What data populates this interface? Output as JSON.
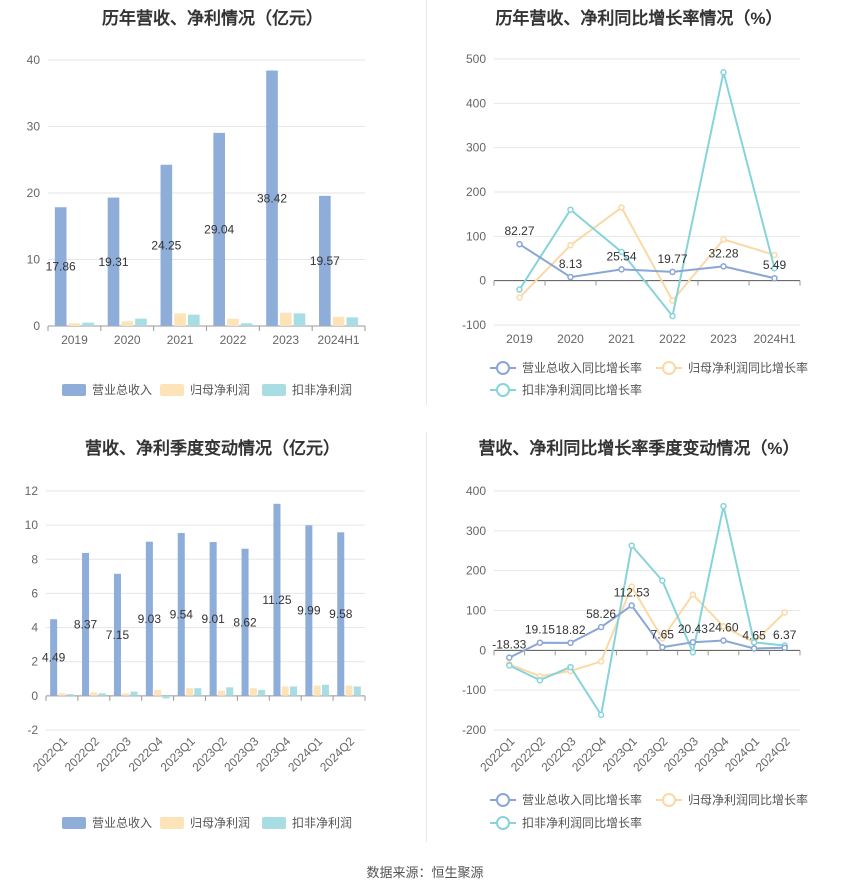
{
  "source_label": "数据来源：恒生聚源",
  "colors": {
    "revenue": "#8eadd9",
    "parent_net": "#fde3b8",
    "deducted_net": "#a8dde3",
    "revenue_line": "#8aa6d6",
    "parent_line": "#fbd9a6",
    "deducted_line": "#86d4da"
  },
  "chart_data": [
    {
      "id": "annual_amount",
      "type": "bar",
      "title": "历年营收、净利情况（亿元）",
      "categories": [
        "2019",
        "2020",
        "2021",
        "2022",
        "2023",
        "2024H1"
      ],
      "ylim": [
        0,
        40
      ],
      "yticks": [
        0,
        10,
        20,
        30,
        40
      ],
      "grid": true,
      "legend_position": "bottom",
      "series": [
        {
          "name": "营业总收入",
          "values": [
            17.86,
            19.31,
            24.25,
            29.04,
            38.42,
            19.57
          ],
          "labels": [
            "17.86",
            "19.31",
            "24.25",
            "29.04",
            "38.42",
            "19.57"
          ]
        },
        {
          "name": "归母净利润",
          "values": [
            0.4,
            0.7,
            1.9,
            1.1,
            2.0,
            1.4
          ]
        },
        {
          "name": "扣非净利润",
          "values": [
            0.5,
            1.1,
            1.7,
            0.4,
            1.9,
            1.3
          ]
        }
      ]
    },
    {
      "id": "annual_growth",
      "type": "line",
      "title": "历年营收、净利同比增长率情况（%）",
      "categories": [
        "2019",
        "2020",
        "2021",
        "2022",
        "2023",
        "2024H1"
      ],
      "ylim": [
        -100,
        500
      ],
      "yticks": [
        -100,
        0,
        100,
        200,
        300,
        400,
        500
      ],
      "grid": true,
      "legend_position": "bottom",
      "series": [
        {
          "name": "营业总收入同比增长率",
          "values": [
            82.27,
            8.13,
            25.54,
            19.77,
            32.28,
            5.49
          ],
          "labels": [
            "82.27",
            "8.13",
            "25.54",
            "19.77",
            "32.28",
            "5.49"
          ]
        },
        {
          "name": "归母净利润同比增长率",
          "values": [
            -38,
            80,
            165,
            -45,
            93,
            58
          ]
        },
        {
          "name": "扣非净利润同比增长率",
          "values": [
            -20,
            160,
            65,
            -80,
            470,
            28
          ]
        }
      ]
    },
    {
      "id": "quarterly_amount",
      "type": "bar",
      "title": "营收、净利季度变动情况（亿元）",
      "categories": [
        "2022Q1",
        "2022Q2",
        "2022Q3",
        "2022Q4",
        "2023Q1",
        "2023Q2",
        "2023Q3",
        "2023Q4",
        "2024Q1",
        "2024Q2"
      ],
      "ylim": [
        -2,
        12
      ],
      "yticks": [
        -2,
        0,
        2,
        4,
        6,
        8,
        10,
        12
      ],
      "grid": true,
      "legend_position": "bottom",
      "series": [
        {
          "name": "营业总收入",
          "values": [
            4.49,
            8.37,
            7.15,
            9.03,
            9.54,
            9.01,
            8.62,
            11.25,
            9.99,
            9.58
          ],
          "labels": [
            "4.49",
            "8.37",
            "7.15",
            "9.03",
            "9.54",
            "9.01",
            "8.62",
            "11.25",
            "9.99",
            "9.58"
          ]
        },
        {
          "name": "归母净利润",
          "values": [
            0.15,
            0.2,
            0.15,
            0.35,
            0.45,
            0.3,
            0.45,
            0.55,
            0.6,
            0.6
          ]
        },
        {
          "name": "扣非净利润",
          "values": [
            0.1,
            0.15,
            0.25,
            -0.15,
            0.45,
            0.5,
            0.35,
            0.55,
            0.65,
            0.55
          ]
        }
      ]
    },
    {
      "id": "quarterly_growth",
      "type": "line",
      "title": "营收、净利同比增长率季度变动情况（%）",
      "categories": [
        "2022Q1",
        "2022Q2",
        "2022Q3",
        "2022Q4",
        "2023Q1",
        "2023Q2",
        "2023Q3",
        "2023Q4",
        "2024Q1",
        "2024Q2"
      ],
      "ylim": [
        -200,
        400
      ],
      "yticks": [
        -200,
        -100,
        0,
        100,
        200,
        300,
        400
      ],
      "grid": true,
      "legend_position": "bottom",
      "series": [
        {
          "name": "营业总收入同比增长率",
          "values": [
            -18.33,
            19.15,
            18.82,
            58.26,
            112.53,
            7.65,
            20.43,
            24.6,
            4.65,
            6.37
          ],
          "labels": [
            "-18.33",
            "19.15",
            "18.82",
            "58.26",
            "112.53",
            "7.65",
            "20.43",
            "24.60",
            "4.65",
            "6.37"
          ]
        },
        {
          "name": "归母净利润同比增长率",
          "values": [
            -35,
            -65,
            -52,
            -28,
            160,
            30,
            140,
            60,
            20,
            95
          ]
        },
        {
          "name": "扣非净利润同比增长率",
          "values": [
            -38,
            -75,
            -42,
            -162,
            263,
            175,
            -5,
            362,
            20,
            12
          ]
        }
      ]
    }
  ]
}
